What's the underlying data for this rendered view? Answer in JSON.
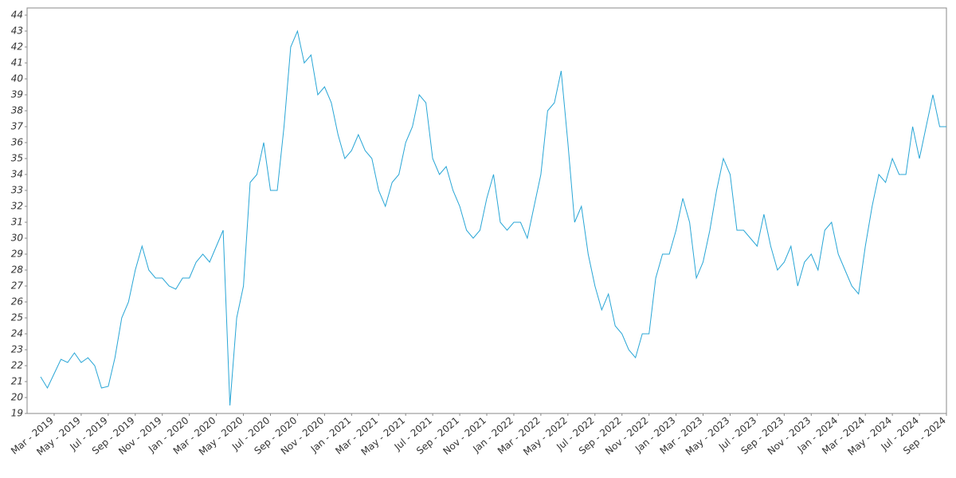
{
  "chart_data": {
    "type": "line",
    "categories": [
      null,
      null,
      "Mar - 2019",
      null,
      null,
      null,
      "May - 2019",
      null,
      null,
      null,
      "Jul - 2019",
      null,
      null,
      null,
      "Sep - 2019",
      null,
      null,
      null,
      "Nov - 2019",
      null,
      null,
      null,
      "Jan - 2020",
      null,
      null,
      null,
      "Mar - 2020",
      null,
      null,
      null,
      "May - 2020",
      null,
      null,
      null,
      "Jul - 2020",
      null,
      null,
      null,
      "Sep - 2020",
      null,
      null,
      null,
      "Nov - 2020",
      null,
      null,
      null,
      "Jan - 2021",
      null,
      null,
      null,
      "Mar - 2021",
      null,
      null,
      null,
      "May - 2021",
      null,
      null,
      null,
      "Jul - 2021",
      null,
      null,
      null,
      "Sep - 2021",
      null,
      null,
      null,
      "Nov - 2021",
      null,
      null,
      null,
      "Jan - 2022",
      null,
      null,
      null,
      "Mar - 2022",
      null,
      null,
      null,
      "May - 2022",
      null,
      null,
      null,
      "Jul - 2022",
      null,
      null,
      null,
      "Sep - 2022",
      null,
      null,
      null,
      "Nov - 2022",
      null,
      null,
      null,
      "Jan - 2023",
      null,
      null,
      null,
      "Mar - 2023",
      null,
      null,
      null,
      "May - 2023",
      null,
      null,
      null,
      "Jul - 2023",
      null,
      null,
      null,
      "Sep - 2023",
      null,
      null,
      null,
      "Nov - 2023",
      null,
      null,
      null,
      "Jan - 2024",
      null,
      null,
      null,
      "Mar - 2024",
      null,
      null,
      null,
      "May - 2024",
      null,
      null,
      null,
      "Jul - 2024",
      null,
      null,
      null,
      "Sep - 2024"
    ],
    "values": [
      21.3,
      20.6,
      21.5,
      22.4,
      22.2,
      22.8,
      22.2,
      22.5,
      22,
      20.6,
      20.7,
      22.5,
      25,
      26,
      28,
      29.5,
      28,
      27.5,
      27.5,
      27,
      26.8,
      27.5,
      27.5,
      28.5,
      29,
      28.5,
      29.5,
      30.5,
      19.5,
      25,
      27,
      33.5,
      34,
      36,
      33,
      33,
      37,
      42,
      43,
      41,
      41.5,
      39,
      39.5,
      38.5,
      36.5,
      35,
      35.5,
      36.5,
      35.5,
      35,
      33,
      32,
      33.5,
      34,
      36,
      37,
      39,
      38.5,
      35,
      34,
      34.5,
      33,
      32,
      30.5,
      30,
      30.5,
      32.5,
      34,
      31,
      30.5,
      31,
      31,
      30,
      32,
      34,
      38,
      38.5,
      40.5,
      36,
      31,
      32,
      29,
      27,
      25.5,
      26.5,
      24.5,
      24,
      23,
      22.5,
      24,
      24,
      27.5,
      29,
      29,
      30.5,
      32.5,
      31,
      27.5,
      28.5,
      30.5,
      33,
      35,
      34,
      30.5,
      30.5,
      30,
      29.5,
      31.5,
      29.5,
      28,
      28.5,
      29.5,
      27,
      28.5,
      29,
      28,
      30.5,
      31,
      29,
      28,
      27,
      26.5,
      29.5,
      32,
      34,
      33.5,
      35,
      34,
      34,
      37,
      35,
      37,
      39,
      37,
      37
    ],
    "color": "#29a6d6",
    "ylim": [
      19,
      44.45
    ],
    "yticks": [
      19,
      20,
      21,
      22,
      23,
      24,
      25,
      26,
      27,
      28,
      29,
      30,
      31,
      32,
      33,
      34,
      35,
      36,
      37,
      38,
      39,
      40,
      41,
      42,
      43,
      44
    ]
  }
}
